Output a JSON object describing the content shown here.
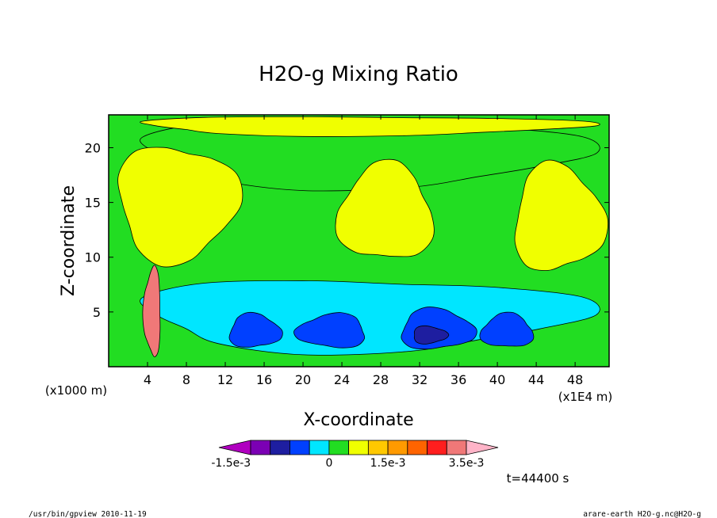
{
  "chart_data": {
    "type": "heatmap",
    "title": "H2O-g Mixing Ratio",
    "xlabel": "X-coordinate",
    "ylabel": "Z-coordinate",
    "x_unit": "(x1E4 m)",
    "y_unit": "(x1000 m)",
    "xlim": [
      0,
      51.5
    ],
    "ylim": [
      0,
      23
    ],
    "x_ticks": [
      4,
      8,
      12,
      16,
      20,
      24,
      28,
      32,
      36,
      40,
      44,
      48
    ],
    "y_ticks": [
      5,
      10,
      15,
      20
    ],
    "time_label": "t=44400 s",
    "colorbar": {
      "labels": [
        {
          "text": "-1.5e-3",
          "value": -0.0015
        },
        {
          "text": "0",
          "value": 0
        },
        {
          "text": "1.5e-3",
          "value": 0.0015
        },
        {
          "text": "3.5e-3",
          "value": 0.0035
        }
      ],
      "levels": [
        -0.004,
        -0.003,
        -0.002,
        -0.001,
        0,
        0.0005,
        0.001,
        0.0015,
        0.002,
        0.0025,
        0.003,
        0.0035
      ],
      "colors": [
        "#b000c0",
        "#7b00b4",
        "#1e1ea0",
        "#0040ff",
        "#00e6ff",
        "#22dd22",
        "#f0ff00",
        "#ffc800",
        "#ff9a00",
        "#ff6400",
        "#ff1e1e",
        "#f07878",
        "#ffb4c8"
      ]
    },
    "regions": [
      {
        "name": "upper-green-layer",
        "value": 0,
        "x": [
          0,
          51.5
        ],
        "z": [
          16,
          23
        ]
      },
      {
        "name": "yellow-top-band",
        "value": 0.0005,
        "x": [
          0,
          51.5
        ],
        "z": [
          21,
          23
        ]
      },
      {
        "name": "yellow-plume-left",
        "value": 0.0005,
        "x": [
          0,
          14
        ],
        "z": [
          9,
          21
        ]
      },
      {
        "name": "yellow-plume-center",
        "value": 0.0005,
        "x": [
          23,
          34
        ],
        "z": [
          9,
          19
        ]
      },
      {
        "name": "yellow-plume-right",
        "value": 0.0005,
        "x": [
          41,
          51.5
        ],
        "z": [
          8,
          19
        ]
      },
      {
        "name": "cyan-lower-layer",
        "value": -0.001,
        "x": [
          0,
          51.5
        ],
        "z": [
          1,
          8.5
        ]
      },
      {
        "name": "blue-core-1",
        "value": -0.002,
        "x": [
          12,
          18
        ],
        "z": [
          1.5,
          5
        ]
      },
      {
        "name": "blue-core-2",
        "value": -0.002,
        "x": [
          19,
          27
        ],
        "z": [
          1.5,
          5
        ]
      },
      {
        "name": "blue-core-3",
        "value": -0.002,
        "x": [
          29.5,
          38
        ],
        "z": [
          1.3,
          5.5
        ]
      },
      {
        "name": "blue-core-4",
        "value": -0.002,
        "x": [
          38,
          44
        ],
        "z": [
          1.5,
          5
        ]
      },
      {
        "name": "navy-core",
        "value": -0.003,
        "x": [
          31,
          35
        ],
        "z": [
          2,
          3.8
        ]
      },
      {
        "name": "warm-plume",
        "value": 0.003,
        "x": [
          3.5,
          5.5
        ],
        "z": [
          0.5,
          9.5
        ]
      }
    ]
  },
  "footer": {
    "left": "/usr/bin/gpview  2010-11-19",
    "right": "arare-earth_H2O-g.nc@H2O-g"
  }
}
